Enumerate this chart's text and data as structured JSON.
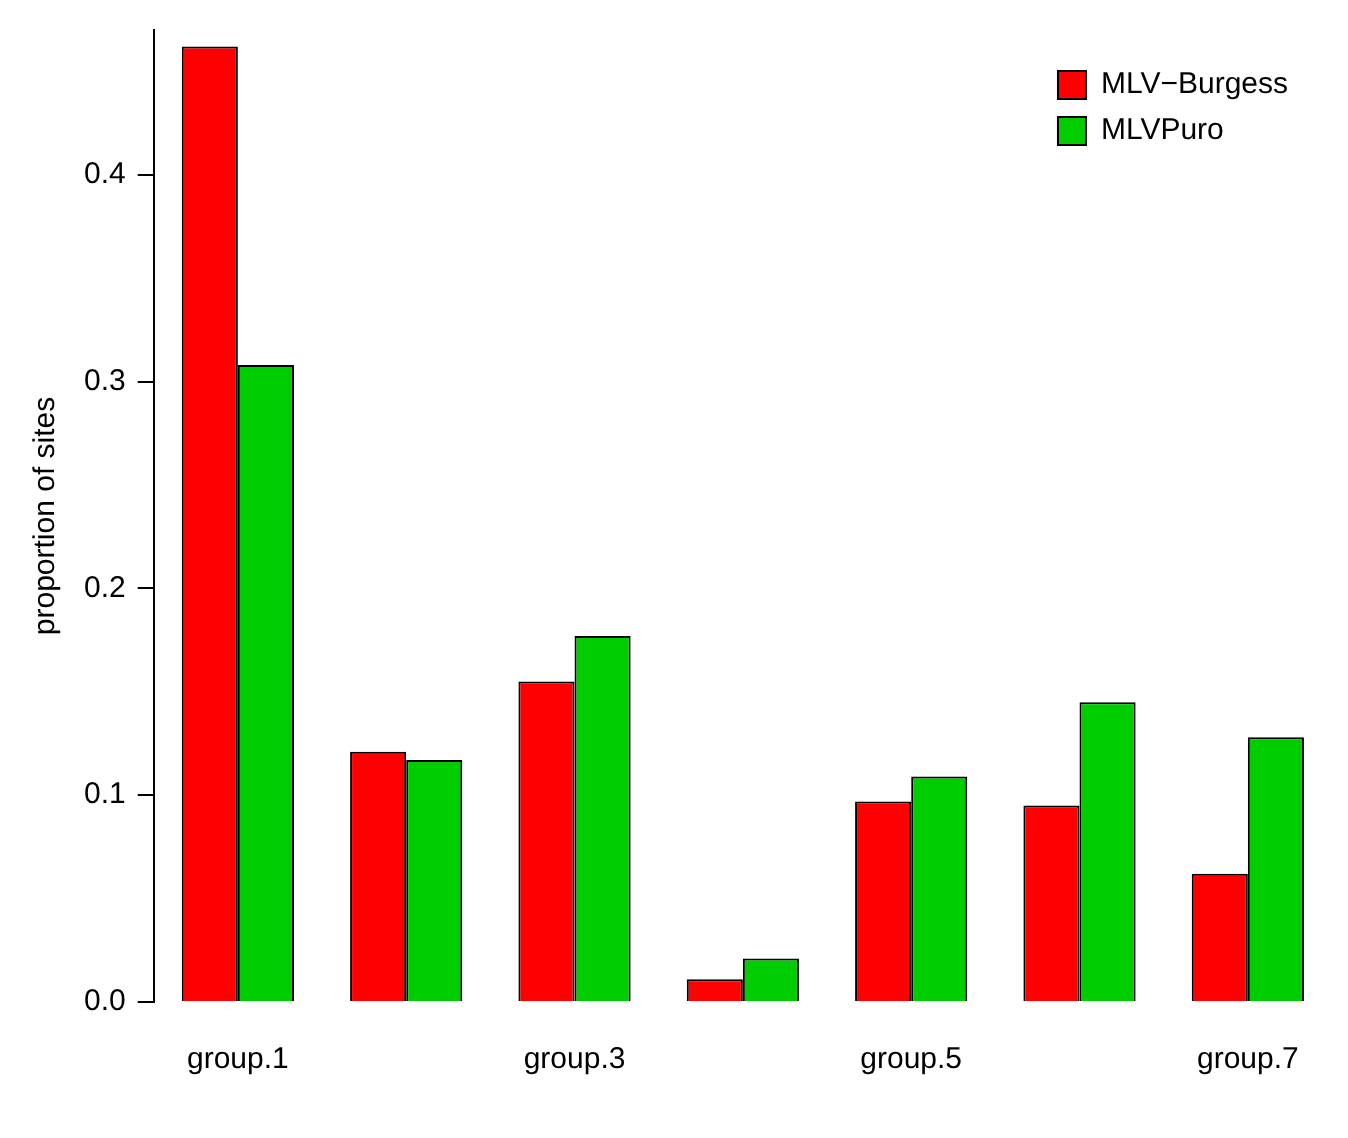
{
  "chart_data": {
    "type": "bar",
    "ylabel": "proportion of sites",
    "categories": [
      "group.1",
      null,
      "group.3",
      null,
      "group.5",
      null,
      "group.7"
    ],
    "series": [
      {
        "name": "MLV−Burgess",
        "color": "#ff0000",
        "values": [
          0.462,
          0.121,
          0.155,
          0.011,
          0.097,
          0.095,
          0.062
        ]
      },
      {
        "name": "MLVPuro",
        "color": "#00cd00",
        "values": [
          0.308,
          0.117,
          0.177,
          0.021,
          0.109,
          0.145,
          0.128
        ]
      }
    ],
    "ylim": [
      0,
      0.47
    ],
    "yticks": [
      {
        "value": 0,
        "label": "0.0"
      },
      0.1,
      0.2,
      0.3,
      0.4
    ],
    "grid": false,
    "legend": "top right"
  }
}
